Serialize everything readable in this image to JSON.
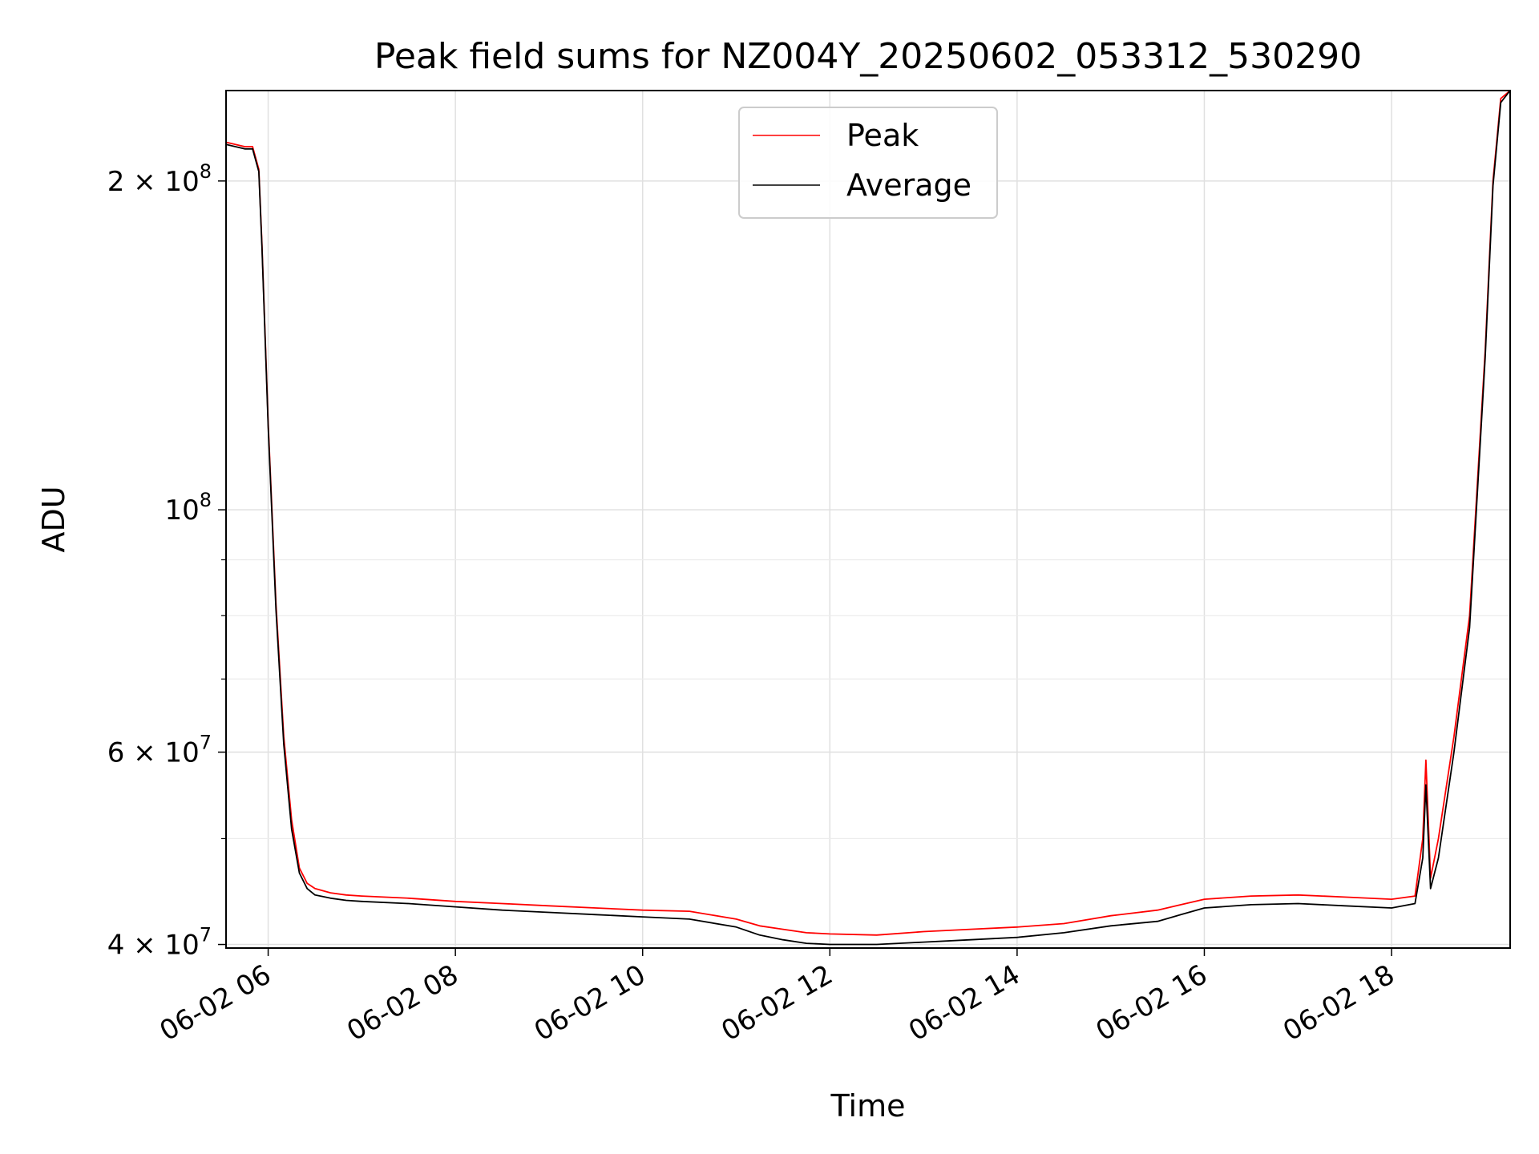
{
  "chart_data": {
    "type": "line",
    "title": "Peak field sums for NZ004Y_20250602_053312_530290",
    "xlabel": "Time",
    "ylabel": "ADU",
    "x_unit": "time (2025-06-02)",
    "xlim": [
      "05:33",
      "19:16"
    ],
    "ylim": [
      39700000,
      242000000
    ],
    "yscale": "log",
    "grid": true,
    "legend_position": "top-center",
    "x_ticks": [
      {
        "x": "06:00",
        "label": "06-02 06"
      },
      {
        "x": "08:00",
        "label": "06-02 08"
      },
      {
        "x": "10:00",
        "label": "06-02 10"
      },
      {
        "x": "12:00",
        "label": "06-02 12"
      },
      {
        "x": "14:00",
        "label": "06-02 14"
      },
      {
        "x": "16:00",
        "label": "06-02 16"
      },
      {
        "x": "18:00",
        "label": "06-02 18"
      }
    ],
    "y_ticks_major": [
      {
        "value": 40000000,
        "mantissa": "4",
        "exp": "7"
      },
      {
        "value": 60000000,
        "mantissa": "6",
        "exp": "7"
      },
      {
        "value": 100000000,
        "mantissa": "",
        "exp": "8"
      },
      {
        "value": 200000000,
        "mantissa": "2",
        "exp": "8"
      }
    ],
    "y_ticks_minor": [
      50000000,
      70000000,
      80000000,
      90000000
    ],
    "series": [
      {
        "name": "Peak",
        "color": "#ff0000",
        "x": [
          "05:33",
          "05:45",
          "05:50",
          "05:54",
          "05:56",
          "06:00",
          "06:05",
          "06:10",
          "06:15",
          "06:20",
          "06:25",
          "06:30",
          "06:40",
          "06:50",
          "07:00",
          "07:30",
          "08:00",
          "08:30",
          "09:00",
          "09:30",
          "10:00",
          "10:30",
          "11:00",
          "11:15",
          "11:30",
          "11:45",
          "12:00",
          "12:30",
          "13:00",
          "13:30",
          "14:00",
          "14:30",
          "15:00",
          "15:30",
          "15:45",
          "16:00",
          "16:30",
          "17:00",
          "17:30",
          "18:00",
          "18:15",
          "18:20",
          "18:22",
          "18:25",
          "18:30",
          "18:40",
          "18:50",
          "19:00",
          "19:05",
          "19:10",
          "19:16"
        ],
        "y": [
          217000000,
          215000000,
          215000000,
          205000000,
          175000000,
          120000000,
          82000000,
          62000000,
          52000000,
          47000000,
          45500000,
          45000000,
          44600000,
          44400000,
          44300000,
          44100000,
          43800000,
          43600000,
          43400000,
          43200000,
          43000000,
          42900000,
          42200000,
          41600000,
          41300000,
          41000000,
          40900000,
          40800000,
          41100000,
          41300000,
          41500000,
          41800000,
          42500000,
          43000000,
          43500000,
          44000000,
          44300000,
          44400000,
          44200000,
          44000000,
          44300000,
          50000000,
          59000000,
          46000000,
          50000000,
          62000000,
          80000000,
          140000000,
          200000000,
          238000000,
          242000000
        ]
      },
      {
        "name": "Average",
        "color": "#000000",
        "x": [
          "05:33",
          "05:45",
          "05:50",
          "05:54",
          "05:56",
          "06:00",
          "06:05",
          "06:10",
          "06:15",
          "06:20",
          "06:25",
          "06:30",
          "06:40",
          "06:50",
          "07:00",
          "07:30",
          "08:00",
          "08:30",
          "09:00",
          "09:30",
          "10:00",
          "10:30",
          "11:00",
          "11:15",
          "11:30",
          "11:45",
          "12:00",
          "12:30",
          "13:00",
          "13:30",
          "14:00",
          "14:30",
          "15:00",
          "15:30",
          "15:45",
          "16:00",
          "16:30",
          "17:00",
          "17:30",
          "18:00",
          "18:15",
          "18:20",
          "18:22",
          "18:25",
          "18:30",
          "18:40",
          "18:50",
          "19:00",
          "19:05",
          "19:10",
          "19:16"
        ],
        "y": [
          216000000,
          214000000,
          214000000,
          204000000,
          174000000,
          119000000,
          81000000,
          61000000,
          51000000,
          46500000,
          45000000,
          44400000,
          44100000,
          43900000,
          43800000,
          43600000,
          43300000,
          43000000,
          42800000,
          42600000,
          42400000,
          42200000,
          41500000,
          40800000,
          40400000,
          40100000,
          40000000,
          40000000,
          40200000,
          40400000,
          40600000,
          41000000,
          41600000,
          42000000,
          42600000,
          43200000,
          43500000,
          43600000,
          43400000,
          43200000,
          43600000,
          48000000,
          56000000,
          45000000,
          48000000,
          60000000,
          78000000,
          138000000,
          198000000,
          236000000,
          242000000
        ]
      }
    ]
  }
}
